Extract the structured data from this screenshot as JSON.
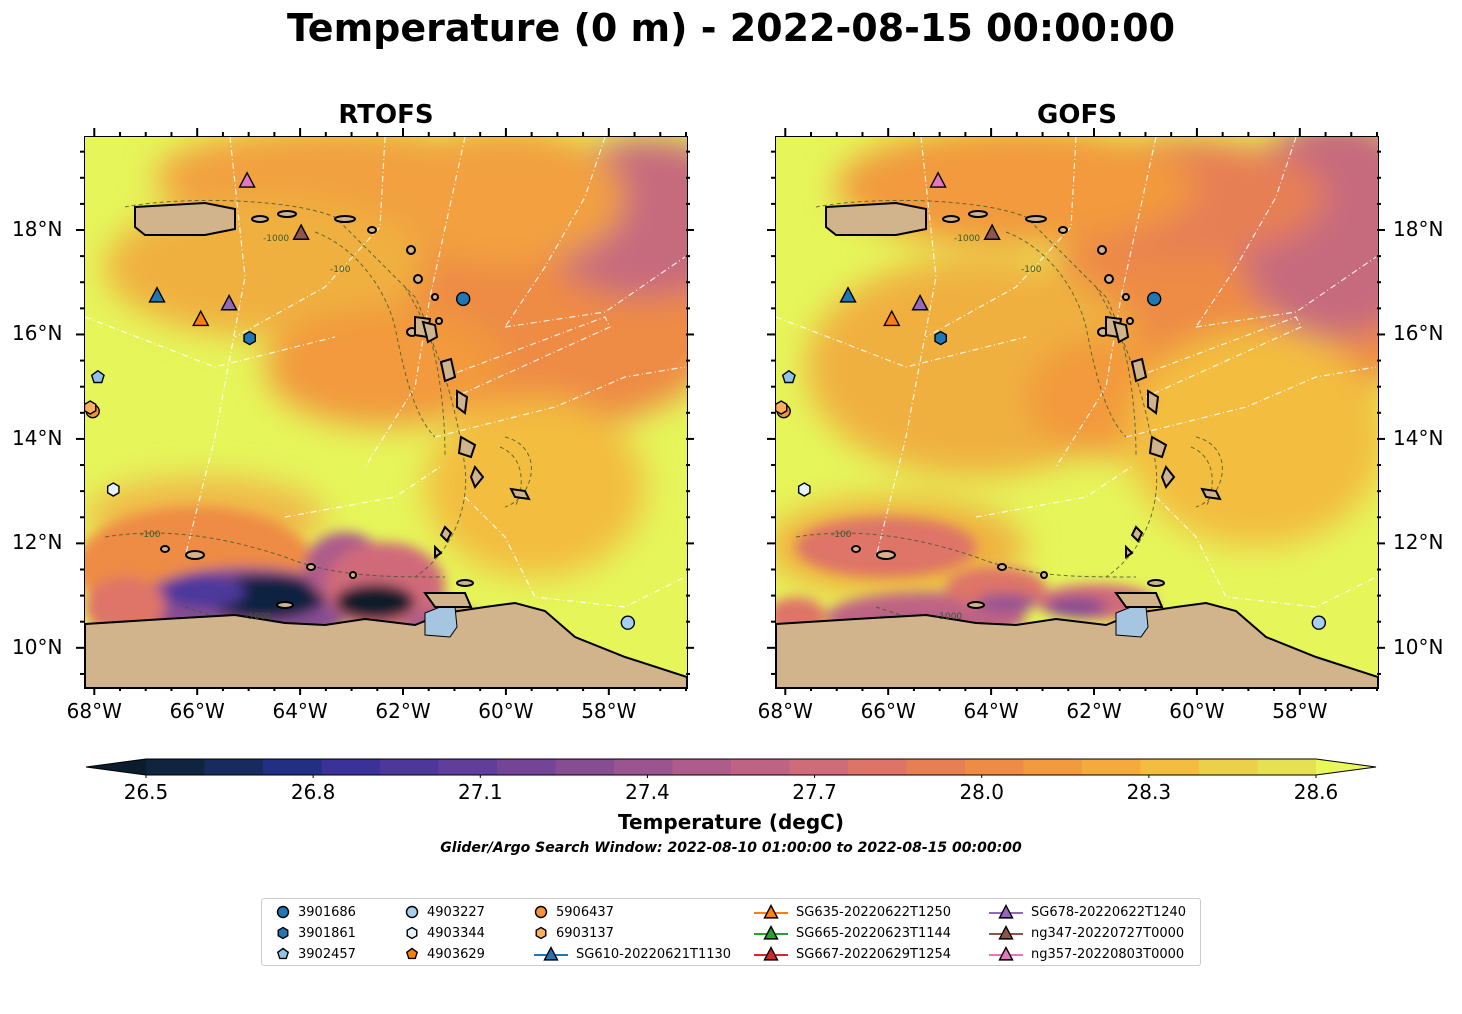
{
  "title": "Temperature (0 m) - 2022-08-15 00:00:00",
  "panels": [
    {
      "title": "RTOFS"
    },
    {
      "title": "GOFS"
    }
  ],
  "axes": {
    "lon_labels": [
      "68°W",
      "66°W",
      "64°W",
      "62°W",
      "60°W",
      "58°W"
    ],
    "lon_values": [
      -68,
      -66,
      -64,
      -62,
      -60,
      -58
    ],
    "lat_labels": [
      "18°N",
      "16°N",
      "14°N",
      "12°N",
      "10°N"
    ],
    "lat_values": [
      18,
      16,
      14,
      12,
      10
    ],
    "lon_range": [
      -68.2,
      -56.5
    ],
    "lat_range": [
      9.25,
      19.8
    ]
  },
  "colorbar": {
    "title": "Temperature (degC)",
    "tick_labels": [
      "26.5",
      "26.8",
      "27.1",
      "27.4",
      "27.7",
      "28.0",
      "28.3",
      "28.6"
    ],
    "range": [
      26.5,
      28.6
    ],
    "extend": "both",
    "colors": [
      "#0b1d2c",
      "#10243f",
      "#172b5e",
      "#222f83",
      "#3a3199",
      "#4e379b",
      "#613e99",
      "#744596",
      "#874d93",
      "#9a5490",
      "#ad5c8b",
      "#bf6384",
      "#d06b7a",
      "#de7468",
      "#e77f55",
      "#ee8b45",
      "#f29a3e",
      "#f4ab3b",
      "#f3bd3f",
      "#ecd04a",
      "#e4e252",
      "#e8f75c"
    ]
  },
  "window_note": "Glider/Argo Search Window: 2022-08-10 01:00:00 to 2022-08-15 00:00:00",
  "legend": [
    {
      "label": "3901686",
      "marker": "circle",
      "color": "#1f77b4"
    },
    {
      "label": "3901861",
      "marker": "hexagon",
      "color": "#1f77b4"
    },
    {
      "label": "3902457",
      "marker": "pentagon",
      "color": "#8fc3e8"
    },
    {
      "label": "4903227",
      "marker": "circle",
      "color": "#a6cfee"
    },
    {
      "label": "4903344",
      "marker": "hexagon",
      "color": "#e6f2fb"
    },
    {
      "label": "4903629",
      "marker": "pentagon",
      "color": "#ff7f0e"
    },
    {
      "label": "5906437",
      "marker": "circle",
      "color": "#f5923e"
    },
    {
      "label": "6903137",
      "marker": "hexagon",
      "color": "#ffae5c"
    },
    {
      "label": "SG610-20220621T1130",
      "marker": "triangle-line",
      "color": "#1f77b4"
    },
    {
      "label": "SG635-20220622T1250",
      "marker": "triangle-line",
      "color": "#ff7f0e"
    },
    {
      "label": "SG665-20220623T1144",
      "marker": "triangle-line",
      "color": "#2ca02c"
    },
    {
      "label": "SG667-20220629T1254",
      "marker": "triangle-line",
      "color": "#d62728"
    },
    {
      "label": "SG678-20220622T1240",
      "marker": "triangle-line",
      "color": "#9467bd"
    },
    {
      "label": "ng347-20220727T0000",
      "marker": "triangle-line",
      "color": "#8c564b"
    },
    {
      "label": "ng357-20220803T0000",
      "marker": "triangle-line",
      "color": "#e377c2"
    }
  ],
  "platforms": [
    {
      "id": "3901686",
      "lon": -60.85,
      "lat": 16.7,
      "marker": "circle",
      "color": "#1f77b4"
    },
    {
      "id": "3901861",
      "lon": -65.0,
      "lat": 15.95,
      "marker": "hexagon",
      "color": "#1f77b4"
    },
    {
      "id": "3902457",
      "lon": -67.95,
      "lat": 15.2,
      "marker": "pentagon",
      "color": "#8fc3e8"
    },
    {
      "id": "4903227",
      "lon": -57.65,
      "lat": 10.5,
      "marker": "circle",
      "color": "#a6cfee"
    },
    {
      "id": "4903344",
      "lon": -67.65,
      "lat": 13.05,
      "marker": "hexagon",
      "color": "#e6f2fb"
    },
    {
      "id": "5906437",
      "lon": -68.05,
      "lat": 14.55,
      "marker": "circle",
      "color": "#f5923e"
    },
    {
      "id": "6903137",
      "lon": -68.1,
      "lat": 14.62,
      "marker": "hexagon",
      "color": "#ffae5c"
    },
    {
      "id": "SG610-20220621T1130",
      "lon": -66.8,
      "lat": 16.75,
      "marker": "triangle",
      "color": "#1f77b4"
    },
    {
      "id": "SG635-20220622T1250",
      "lon": -65.95,
      "lat": 16.3,
      "marker": "triangle",
      "color": "#ff7f0e"
    },
    {
      "id": "SG678-20220622T1240",
      "lon": -65.4,
      "lat": 16.6,
      "marker": "triangle",
      "color": "#9467bd"
    },
    {
      "id": "ng347-20220727T0000",
      "lon": -64.0,
      "lat": 17.95,
      "marker": "triangle",
      "color": "#8c564b"
    },
    {
      "id": "ng357-20220803T0000",
      "lon": -65.05,
      "lat": 18.95,
      "marker": "triangle",
      "color": "#e377c2"
    }
  ],
  "contour_labels": [
    "-1000",
    "-100"
  ],
  "colors": {
    "land": "#d2b48c",
    "lake": "#a6c5e0",
    "warm_background": "#e8f75c",
    "eez_lines": "#ffffff",
    "bathymetry_contours": "#3a5a2a"
  }
}
